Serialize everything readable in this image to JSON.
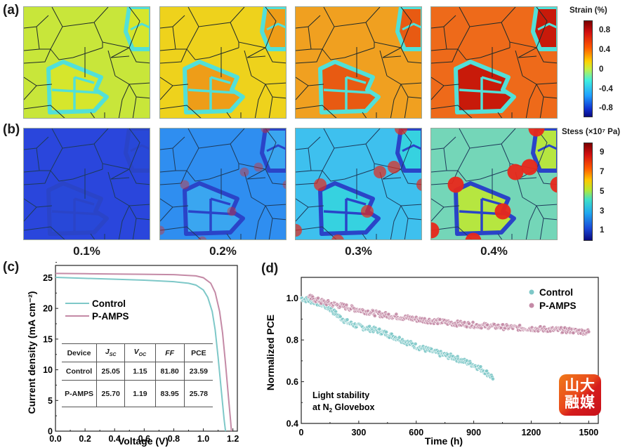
{
  "panel_labels": {
    "a": "(a)",
    "b": "(b)",
    "c": "(c)",
    "d": "(d)"
  },
  "simulation": {
    "strain_levels": [
      "0.1%",
      "0.2%",
      "0.3%",
      "0.4%"
    ],
    "row_a": {
      "quantity": "Strain",
      "colorbar_title": "Strain (%)",
      "colorbar_ticks": [
        "0.8",
        "0.4",
        "0",
        "-0.4",
        "-0.8"
      ],
      "grain_colors": [
        "#c8e63a",
        "#eed21c",
        "#f0a020",
        "#ee6a1a"
      ],
      "highlight_grain_colors": [
        "#d6e62c",
        "#ee9d18",
        "#e85a12",
        "#c81a0a"
      ],
      "boundary_color": "#52e0d8"
    },
    "row_b": {
      "quantity": "Stress",
      "colorbar_title": "Stess (×10⁷ Pa)",
      "colorbar_ticks": [
        "9",
        "7",
        "5",
        "3",
        "1"
      ],
      "grain_colors": [
        "#2a46dc",
        "#2f8ef0",
        "#3ec0ee",
        "#74d6b8"
      ],
      "highlight_grain_colors": [
        "#2848d8",
        "#3aa6f0",
        "#36d2e0",
        "#b6e640"
      ],
      "hotspot_color": "#e8281a"
    }
  },
  "chart_data": [
    {
      "id": "c",
      "type": "line",
      "title": "",
      "xlabel": "Voltage (V)",
      "ylabel": "Current density (mA cm⁻²)",
      "xlim": [
        0,
        1.23
      ],
      "ylim": [
        0,
        27
      ],
      "xticks": [
        "0.0",
        "0.2",
        "0.4",
        "0.6",
        "0.8",
        "1.0",
        "1.2"
      ],
      "yticks": [
        "0",
        "5",
        "10",
        "15",
        "20",
        "25"
      ],
      "legend_position": "upper-left",
      "series": [
        {
          "name": "Control",
          "color": "#7ec8c8",
          "x": [
            0,
            0.2,
            0.4,
            0.6,
            0.8,
            0.9,
            0.95,
            1.0,
            1.03,
            1.06,
            1.08,
            1.1,
            1.12,
            1.14,
            1.15
          ],
          "y": [
            25.05,
            24.9,
            24.75,
            24.6,
            24.35,
            24.1,
            23.8,
            23.0,
            21.8,
            19.5,
            16.5,
            12.0,
            7.0,
            2.0,
            0
          ]
        },
        {
          "name": "P-AMPS",
          "color": "#c48aa6",
          "x": [
            0,
            0.2,
            0.4,
            0.6,
            0.8,
            0.95,
            1.0,
            1.05,
            1.08,
            1.11,
            1.13,
            1.15,
            1.17,
            1.185,
            1.19
          ],
          "y": [
            25.7,
            25.65,
            25.6,
            25.55,
            25.5,
            25.3,
            25.0,
            24.1,
            22.6,
            19.5,
            16.0,
            11.0,
            5.5,
            1.5,
            0
          ]
        }
      ],
      "table": {
        "headers": [
          "Device",
          "J_SC",
          "V_OC",
          "FF",
          "PCE"
        ],
        "rows": [
          [
            "Control",
            "25.05",
            "1.15",
            "81.80",
            "23.59"
          ],
          [
            "P-AMPS",
            "25.70",
            "1.19",
            "83.95",
            "25.78"
          ]
        ]
      }
    },
    {
      "id": "d",
      "type": "scatter",
      "title": "",
      "xlabel": "Time (h)",
      "ylabel": "Normalized PCE",
      "xlim": [
        0,
        1550
      ],
      "ylim": [
        0.4,
        1.1
      ],
      "xticks": [
        "0",
        "300",
        "600",
        "900",
        "1200",
        "1500"
      ],
      "yticks": [
        "0.4",
        "0.6",
        "0.8",
        "1.0"
      ],
      "legend_position": "top-right",
      "annotation": {
        "line1": "Light stability",
        "line2_pre": "at N",
        "line2_sub": "2",
        "line2_post": " Glovebox"
      },
      "series": [
        {
          "name": "Control",
          "color": "#7ec8c8",
          "x": [
            0,
            100,
            150,
            200,
            250,
            300,
            400,
            500,
            600,
            700,
            800,
            900,
            950,
            1000
          ],
          "y": [
            1.0,
            0.975,
            0.95,
            0.91,
            0.88,
            0.865,
            0.845,
            0.81,
            0.77,
            0.74,
            0.715,
            0.68,
            0.655,
            0.62
          ]
        },
        {
          "name": "P-AMPS",
          "color": "#c48aa6",
          "x": [
            40,
            100,
            200,
            300,
            400,
            500,
            600,
            700,
            800,
            900,
            1000,
            1100,
            1200,
            1300,
            1400,
            1500
          ],
          "y": [
            1.005,
            0.985,
            0.965,
            0.945,
            0.925,
            0.912,
            0.9,
            0.89,
            0.88,
            0.872,
            0.865,
            0.86,
            0.855,
            0.85,
            0.845,
            0.838
          ]
        }
      ]
    }
  ],
  "watermark": {
    "line1": "山大",
    "line2": "融媒"
  }
}
